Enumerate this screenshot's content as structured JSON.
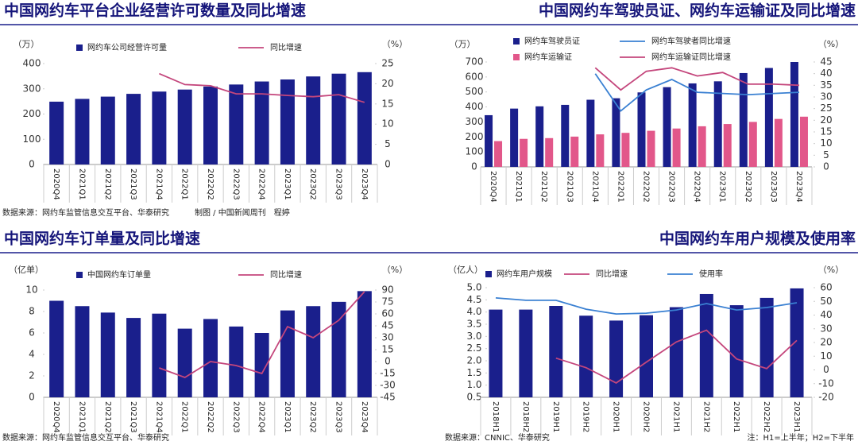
{
  "chart_data": [
    {
      "type": "combo",
      "title": "中国网约车平台企业经营许可数量及同比增速",
      "y_label": "（万）",
      "y2_label": "（%）",
      "categories": [
        "2020Q4",
        "2021Q1",
        "2021Q2",
        "2021Q3",
        "2021Q4",
        "2022Q1",
        "2022Q2",
        "2022Q3",
        "2022Q4",
        "2023Q1",
        "2023Q2",
        "2023Q3",
        "2023Q4"
      ],
      "series": [
        {
          "name": "网约车公司经营许可量",
          "type": "bar",
          "color": "#1a1f8c",
          "values": [
            249,
            260,
            269,
            280,
            289,
            297,
            309,
            317,
            329,
            337,
            349,
            360,
            366
          ]
        },
        {
          "name": "同比增速",
          "type": "line",
          "axis": "y2",
          "color": "#c4467c",
          "values": [
            null,
            null,
            null,
            null,
            22.5,
            19.8,
            19.5,
            17.5,
            17.5,
            17.1,
            16.8,
            17.3,
            15.4
          ]
        }
      ],
      "ylim": [
        0,
        400
      ],
      "yticks": [
        0,
        100,
        200,
        300,
        400
      ],
      "y2lim": [
        0,
        25
      ],
      "y2ticks": [
        0,
        5,
        10,
        15,
        20,
        25
      ],
      "source": "数据来源：网约车监管信息交互平台、华泰研究",
      "credit": "制图 / 中国新闻周刊　程婷"
    },
    {
      "type": "combo",
      "title": "中国网约车驾驶员证、网约车运输证及同比增速",
      "y_label": "（万）",
      "y2_label": "（%）",
      "categories": [
        "2020Q4",
        "2021Q1",
        "2021Q2",
        "2021Q3",
        "2021Q4",
        "2022Q1",
        "2022Q2",
        "2022Q3",
        "2022Q4",
        "2023Q1",
        "2023Q2",
        "2023Q3",
        "2023Q4"
      ],
      "series": [
        {
          "name": "网约车驾驶员证",
          "type": "bar",
          "color": "#1a1f8c",
          "values": [
            345,
            389,
            404,
            414,
            448,
            458,
            497,
            532,
            557,
            571,
            626,
            660,
            700
          ]
        },
        {
          "name": "网约车运输证",
          "type": "bar",
          "color": "#e2578a",
          "values": [
            172,
            187,
            192,
            202,
            217,
            227,
            241,
            256,
            271,
            286,
            300,
            320,
            335
          ]
        },
        {
          "name": "网约车驾驶者同比增速",
          "type": "line",
          "axis": "y2",
          "color": "#3a80d2",
          "values": [
            null,
            null,
            null,
            null,
            40,
            24,
            33,
            37.5,
            32,
            31.5,
            31,
            31.5,
            32
          ]
        },
        {
          "name": "网约车运输证同比增速",
          "type": "line",
          "axis": "y2",
          "color": "#c4467c",
          "values": [
            null,
            null,
            null,
            null,
            42.5,
            33,
            41,
            42.5,
            39,
            40.5,
            35.5,
            35.5,
            35
          ]
        }
      ],
      "ylim": [
        0,
        700
      ],
      "yticks": [
        0,
        100,
        200,
        300,
        400,
        500,
        600,
        700
      ],
      "y2lim": [
        0,
        45
      ],
      "y2ticks": [
        0,
        5,
        10,
        15,
        20,
        25,
        30,
        35,
        40,
        45
      ]
    },
    {
      "type": "combo",
      "title": "中国网约车订单量及同比增速",
      "y_label": "（亿单）",
      "y2_label": "（%）",
      "categories": [
        "2020Q4",
        "2021Q1",
        "2021Q2",
        "2021Q3",
        "2021Q4",
        "2022Q1",
        "2022Q2",
        "2022Q3",
        "2022Q4",
        "2023Q1",
        "2023Q2",
        "2023Q3",
        "2023Q4"
      ],
      "series": [
        {
          "name": "中国网约车订单量",
          "type": "bar",
          "color": "#1a1f8c",
          "values": [
            9.0,
            8.5,
            7.9,
            7.4,
            7.8,
            6.4,
            7.3,
            6.6,
            6.0,
            8.1,
            8.5,
            8.9,
            9.9
          ]
        },
        {
          "name": "同比增速",
          "type": "line",
          "axis": "y2",
          "color": "#c4467c",
          "values": [
            null,
            null,
            null,
            null,
            -8,
            -20,
            0,
            -5,
            -15,
            44,
            30,
            52,
            88
          ]
        }
      ],
      "ylim": [
        0,
        10
      ],
      "yticks": [
        0,
        2,
        4,
        6,
        8,
        10
      ],
      "y2lim": [
        -45,
        90
      ],
      "y2ticks": [
        -45,
        -30,
        -15,
        0,
        15,
        30,
        45,
        60,
        75,
        90
      ],
      "source": "数据来源：网约车监管信息交互平台、华泰研究"
    },
    {
      "type": "combo",
      "title": "中国网约车用户规模及使用率",
      "y_label": "（亿人）",
      "y2_label": "（%）",
      "categories": [
        "2018H1",
        "2018H2",
        "2019H1",
        "2019H2",
        "2020H1",
        "2020H2",
        "2021H1",
        "2021H2",
        "2022H1",
        "2022H2",
        "2023H1"
      ],
      "series": [
        {
          "name": "网约车用户规模",
          "type": "bar",
          "color": "#1a1f8c",
          "values": [
            4.1,
            4.1,
            4.25,
            3.85,
            3.65,
            3.87,
            4.2,
            4.74,
            4.28,
            4.58,
            4.97
          ]
        },
        {
          "name": "同比增速",
          "type": "line",
          "axis": "y2",
          "color": "#c4467c",
          "values": [
            null,
            null,
            8.6,
            1.6,
            -9.5,
            5.7,
            20.4,
            29,
            8,
            1,
            21.5
          ]
        },
        {
          "name": "使用率",
          "type": "line",
          "axis": "y2",
          "color": "#3a80d2",
          "values": [
            52.5,
            50.8,
            50.8,
            44.3,
            40.8,
            41.4,
            43.7,
            48.4,
            43.7,
            45.5,
            49
          ]
        }
      ],
      "ylim": [
        0.5,
        5
      ],
      "yticks": [
        0.5,
        {
          "value": 1,
          "label": "1.0"
        },
        1.5,
        {
          "value": 2,
          "label": "2.0"
        },
        2.5,
        {
          "value": 3,
          "label": "3.0"
        },
        3.5,
        {
          "value": 4,
          "label": "4.0"
        },
        4.5,
        {
          "value": 5,
          "label": "5.0"
        }
      ],
      "y2lim": [
        -20,
        60
      ],
      "y2ticks": [
        -20,
        -10,
        0,
        10,
        20,
        30,
        40,
        50,
        60
      ],
      "source": "数据来源：CNNIC、华泰研究",
      "note": "注：H1=上半年；H2=下半年"
    }
  ]
}
